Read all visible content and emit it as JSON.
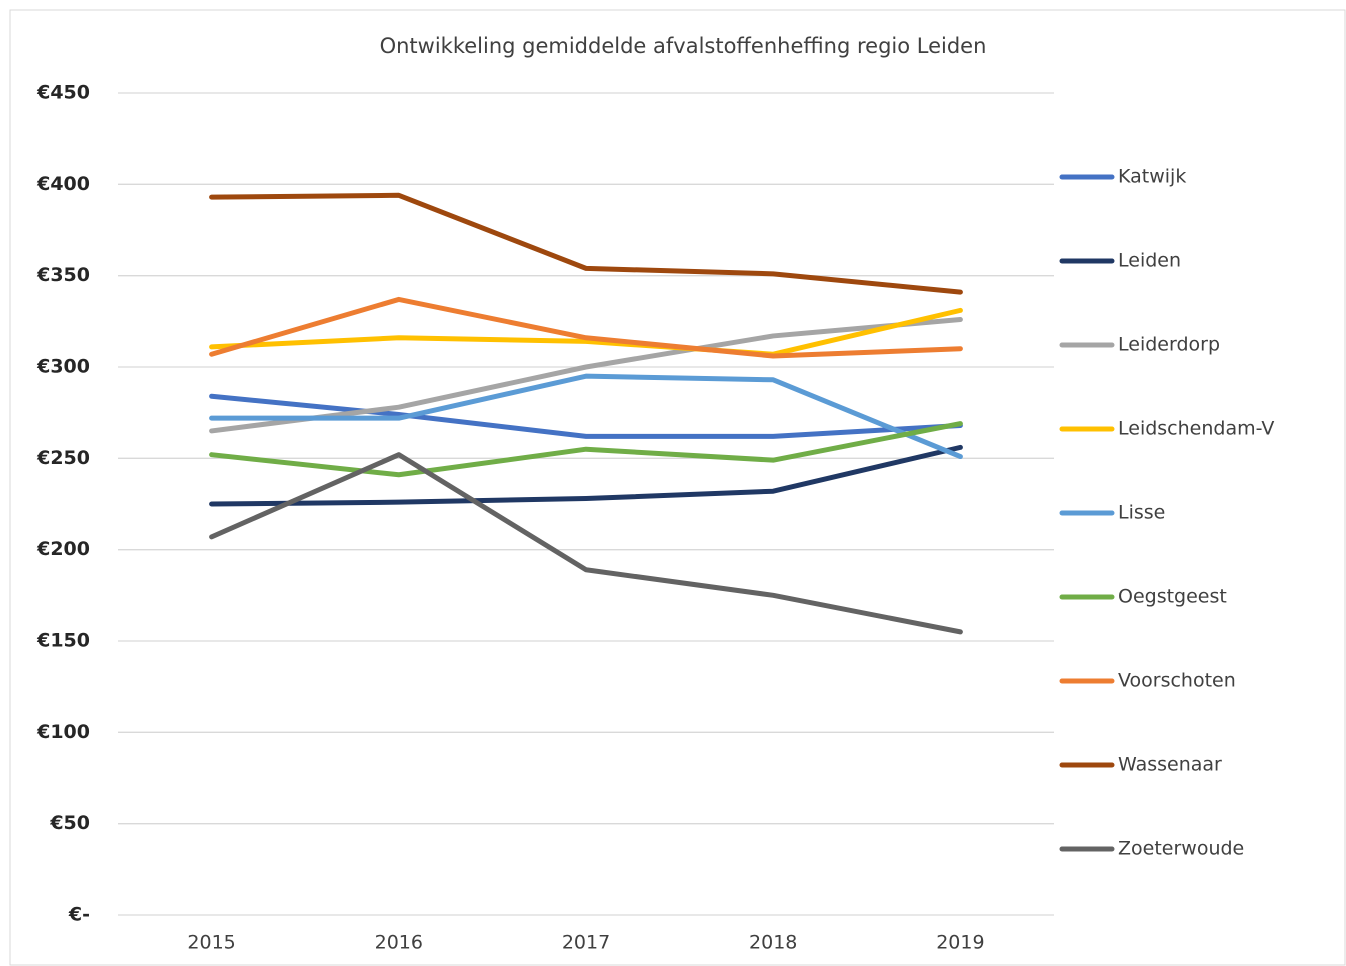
{
  "chart_data": {
    "type": "line",
    "title": "Ontwikkeling gemiddelde afvalstoffenheffing regio Leiden",
    "categories": [
      "2015",
      "2016",
      "2017",
      "2018",
      "2019"
    ],
    "series": [
      {
        "name": "Katwijk",
        "color": "#4472c4",
        "values": [
          284,
          274,
          262,
          262,
          268
        ]
      },
      {
        "name": "Leiden",
        "color": "#203864",
        "values": [
          225,
          226,
          228,
          232,
          256
        ]
      },
      {
        "name": "Leiderdorp",
        "color": "#a5a5a5",
        "values": [
          265,
          278,
          300,
          317,
          326
        ]
      },
      {
        "name": "Leidschendam-V",
        "color": "#ffc000",
        "values": [
          311,
          316,
          314,
          307,
          331
        ]
      },
      {
        "name": "Lisse",
        "color": "#5b9bd5",
        "values": [
          272,
          272,
          295,
          293,
          251
        ]
      },
      {
        "name": "Oegstgeest",
        "color": "#70ad47",
        "values": [
          252,
          241,
          255,
          249,
          269
        ]
      },
      {
        "name": "Voorschoten",
        "color": "#ed7d31",
        "values": [
          307,
          337,
          316,
          306,
          310
        ]
      },
      {
        "name": "Wassenaar",
        "color": "#9e480e",
        "values": [
          393,
          394,
          354,
          351,
          341
        ]
      },
      {
        "name": "Zoeterwoude",
        "color": "#636363",
        "values": [
          207,
          252,
          189,
          175,
          155
        ]
      }
    ],
    "ylim": [
      0,
      450
    ],
    "yticks": [
      {
        "value": 0,
        "label": "€-"
      },
      {
        "value": 50,
        "label": "€50"
      },
      {
        "value": 100,
        "label": "€100"
      },
      {
        "value": 150,
        "label": "€150"
      },
      {
        "value": 200,
        "label": "€200"
      },
      {
        "value": 250,
        "label": "€250"
      },
      {
        "value": 300,
        "label": "€300"
      },
      {
        "value": 350,
        "label": "€350"
      },
      {
        "value": 400,
        "label": "€400"
      },
      {
        "value": 450,
        "label": "€450"
      }
    ],
    "grid": true,
    "legend": "right"
  }
}
